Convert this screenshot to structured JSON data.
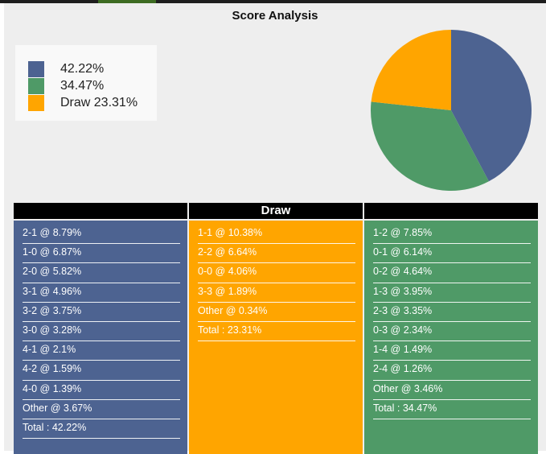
{
  "title": "Score Analysis",
  "colors": {
    "home": "#4d6391",
    "draw": "#ffa500",
    "away": "#4f9a67"
  },
  "legend": [
    {
      "label": "42.22%",
      "color": "#4d6391"
    },
    {
      "label": "34.47%",
      "color": "#4f9a67"
    },
    {
      "label": "Draw 23.31%",
      "color": "#ffa500"
    }
  ],
  "pie": {
    "slices": [
      {
        "value": 42.22,
        "color": "#4d6391"
      },
      {
        "value": 34.47,
        "color": "#4f9a67"
      },
      {
        "value": 23.31,
        "color": "#ffa500"
      }
    ]
  },
  "columns": {
    "home": {
      "header": "",
      "rows": [
        "2-1 @ 8.79%",
        "1-0 @ 6.87%",
        "2-0 @ 5.82%",
        "3-1 @ 4.96%",
        "3-2 @ 3.75%",
        "3-0 @ 3.28%",
        "4-1 @ 2.1%",
        "4-2 @ 1.59%",
        "4-0 @ 1.39%",
        "Other @ 3.67%",
        "Total : 42.22%"
      ]
    },
    "draw": {
      "header": "Draw",
      "rows": [
        "1-1 @ 10.38%",
        "2-2 @ 6.64%",
        "0-0 @ 4.06%",
        "3-3 @ 1.89%",
        "Other @ 0.34%",
        "Total : 23.31%"
      ]
    },
    "away": {
      "header": "",
      "rows": [
        "1-2 @ 7.85%",
        "0-1 @ 6.14%",
        "0-2 @ 4.64%",
        "1-3 @ 3.95%",
        "2-3 @ 3.35%",
        "0-3 @ 2.34%",
        "1-4 @ 1.49%",
        "2-4 @ 1.26%",
        "Other @ 3.46%",
        "Total : 34.47%"
      ]
    }
  }
}
